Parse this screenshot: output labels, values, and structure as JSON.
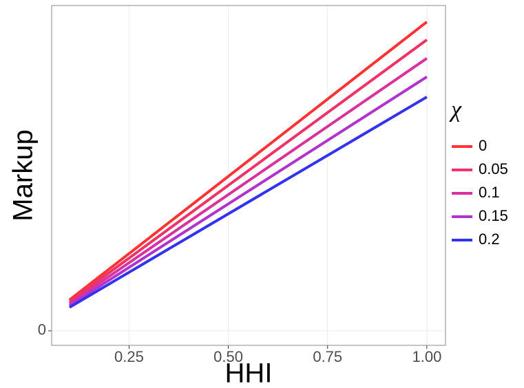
{
  "chart_data": {
    "type": "line",
    "x_label": "HHI",
    "y_label": "Markup",
    "legend_title": "χ",
    "x": [
      0.1,
      1.0
    ],
    "series": [
      {
        "name": "0",
        "color": "#ff3333",
        "values": [
          0.1,
          1.0
        ]
      },
      {
        "name": "0.05",
        "color": "#ee3366",
        "values": [
          0.094,
          0.942
        ]
      },
      {
        "name": "0.1",
        "color": "#d8339c",
        "values": [
          0.088,
          0.882
        ]
      },
      {
        "name": "0.15",
        "color": "#b033cc",
        "values": [
          0.082,
          0.822
        ]
      },
      {
        "name": "0.2",
        "color": "#3333ee",
        "values": [
          0.076,
          0.757
        ]
      }
    ],
    "xlim": [
      0.055,
      1.047
    ],
    "xticks": [
      {
        "value": 0.25,
        "label": "0.25"
      },
      {
        "value": 0.5,
        "label": "0.50"
      },
      {
        "value": 0.75,
        "label": "0.75"
      },
      {
        "value": 1.0,
        "label": "1.00"
      }
    ],
    "ylim": [
      -0.047,
      1.053
    ],
    "yticks": [
      0
    ],
    "grid": true,
    "legend": "right"
  }
}
